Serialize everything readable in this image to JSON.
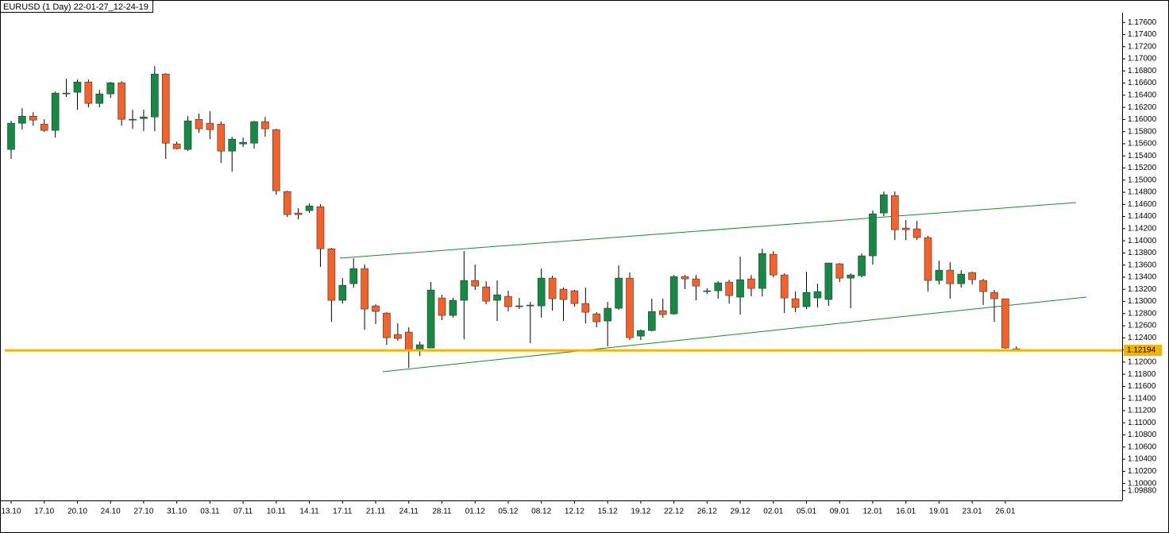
{
  "chart_data": {
    "type": "candlestick",
    "title": "EURUSD (1 Day) 22-01-27_12-24-19",
    "categories": [
      "13.10",
      null,
      null,
      "17.10",
      null,
      null,
      "20.10",
      null,
      null,
      "24.10",
      null,
      null,
      "27.10",
      null,
      null,
      "31.10",
      null,
      null,
      "03.11",
      null,
      null,
      "07.11",
      null,
      null,
      "10.11",
      null,
      null,
      "14.11",
      null,
      null,
      "17.11",
      null,
      null,
      "21.11",
      null,
      null,
      "24.11",
      null,
      null,
      "28.11",
      null,
      null,
      "01.12",
      null,
      null,
      "05.12",
      null,
      null,
      "08.12",
      null,
      null,
      "12.12",
      null,
      null,
      "15.12",
      null,
      null,
      "19.12",
      null,
      null,
      "22.12",
      null,
      null,
      "26.12",
      null,
      null,
      "29.12",
      null,
      null,
      "02.01",
      null,
      null,
      "05.01",
      null,
      null,
      "09.01",
      null,
      null,
      "12.01",
      null,
      null,
      "16.01",
      null,
      null,
      "19.01",
      null,
      null,
      "23.01",
      null,
      null,
      "26.01",
      null
    ],
    "open": [
      1.15506,
      1.15938,
      1.16055,
      1.15924,
      1.1582,
      1.16422,
      1.16448,
      1.16618,
      1.16265,
      1.16422,
      1.16605,
      1.16003,
      1.16016,
      1.16042,
      1.16749,
      1.15597,
      1.15506,
      1.16003,
      1.15938,
      1.15924,
      1.15479,
      1.15597,
      1.1561,
      1.15964,
      1.15833,
      1.14812,
      1.14458,
      1.14498,
      1.14563,
      1.13869,
      1.13019,
      1.13293,
      1.13542,
      1.12927,
      1.12809,
      1.12456,
      1.12495,
      1.12207,
      1.12233,
      1.13058,
      1.1277,
      1.13019,
      1.13346,
      1.13241,
      1.13019,
      1.13084,
      1.12927,
      1.1294,
      1.12927,
      1.13385,
      1.13202,
      1.13176,
      1.12966,
      1.12796,
      1.12678,
      1.12888,
      1.13385,
      1.12429,
      1.12521,
      1.12848,
      1.12796,
      1.13411,
      1.13372,
      1.13176,
      1.13176,
      1.1332,
      1.13071,
      1.13372,
      1.13215,
      1.13778,
      1.13437,
      1.13045,
      1.12914,
      1.13058,
      1.13032,
      1.13621,
      1.13385,
      1.13424,
      1.13752,
      1.14458,
      1.14746,
      1.1421,
      1.14197,
      1.14053,
      1.13346,
      1.13516,
      1.13293,
      1.13477,
      1.13346,
      1.13149,
      1.13045,
      1.1222
    ],
    "high": [
      1.15977,
      1.16186,
      1.16121,
      1.16003,
      1.16461,
      1.16671,
      1.16658,
      1.16658,
      1.16487,
      1.16618,
      1.16631,
      1.1616,
      1.1616,
      1.1688,
      1.16762,
      1.15636,
      1.16055,
      1.16095,
      1.16134,
      1.15964,
      1.15715,
      1.15702,
      1.15977,
      1.16042,
      1.15846,
      1.14825,
      1.14537,
      1.14616,
      1.14602,
      1.13882,
      1.13385,
      1.13712,
      1.13608,
      1.12953,
      1.12822,
      1.12639,
      1.12573,
      1.12338,
      1.1332,
      1.1311,
      1.13058,
      1.1383,
      1.13608,
      1.13333,
      1.13346,
      1.13176,
      1.13058,
      1.12992,
      1.13542,
      1.13424,
      1.13228,
      1.13189,
      1.13228,
      1.12822,
      1.12992,
      1.13594,
      1.13477,
      1.12534,
      1.13045,
      1.13045,
      1.13437,
      1.13437,
      1.13437,
      1.13215,
      1.13333,
      1.13359,
      1.13738,
      1.13437,
      1.13869,
      1.1383,
      1.13464,
      1.13163,
      1.1349,
      1.13293,
      1.13634,
      1.13634,
      1.13464,
      1.13791,
      1.14498,
      1.14812,
      1.14812,
      1.14341,
      1.14328,
      1.14079,
      1.13673,
      1.13647,
      1.13516,
      1.1349,
      1.13372,
      1.13189,
      1.13045,
      1.12259
    ],
    "low": [
      1.15349,
      1.15833,
      1.15898,
      1.15794,
      1.15702,
      1.1637,
      1.1616,
      1.16199,
      1.16199,
      1.16356,
      1.15898,
      1.15846,
      1.15807,
      1.15807,
      1.15349,
      1.15506,
      1.15479,
      1.15781,
      1.15676,
      1.15283,
      1.15139,
      1.15545,
      1.15519,
      1.15715,
      1.14759,
      1.14393,
      1.14354,
      1.14458,
      1.13568,
      1.12665,
      1.12966,
      1.13228,
      1.12534,
      1.12626,
      1.12285,
      1.12351,
      1.11906,
      1.12102,
      1.12233,
      1.12691,
      1.12731,
      1.12377,
      1.13189,
      1.12953,
      1.12678,
      1.12835,
      1.12875,
      1.12312,
      1.12731,
      1.12848,
      1.12678,
      1.12914,
      1.12639,
      1.12573,
      1.12259,
      1.12861,
      1.12364,
      1.12364,
      1.12508,
      1.12731,
      1.12783,
      1.13202,
      1.13019,
      1.13123,
      1.13045,
      1.12966,
      1.12783,
      1.13084,
      1.13084,
      1.13398,
      1.12809,
      1.12822,
      1.12875,
      1.12901,
      1.12927,
      1.1332,
      1.12888,
      1.13398,
      1.13608,
      1.14406,
      1.14013,
      1.14013,
      1.14013,
      1.13163,
      1.1328,
      1.13045,
      1.13228,
      1.1328,
      1.1294,
      1.12665,
      1.1222,
      1.12181
    ],
    "close": [
      1.15938,
      1.16055,
      1.1599,
      1.1582,
      1.16435,
      1.16435,
      1.16618,
      1.16265,
      1.16422,
      1.16605,
      1.16003,
      1.16003,
      1.16042,
      1.16749,
      1.1561,
      1.15519,
      1.15977,
      1.15846,
      1.15833,
      1.15479,
      1.15676,
      1.15623,
      1.15964,
      1.15846,
      1.14825,
      1.14432,
      1.14432,
      1.14576,
      1.13869,
      1.13019,
      1.13267,
      1.13542,
      1.12875,
      1.12835,
      1.12403,
      1.1239,
      1.12194,
      1.12286,
      1.13189,
      1.1277,
      1.13019,
      1.13346,
      1.13254,
      1.13005,
      1.1311,
      1.12914,
      1.12927,
      1.1294,
      1.13385,
      1.13045,
      1.13032,
      1.12966,
      1.12822,
      1.12665,
      1.12888,
      1.13385,
      1.12403,
      1.12521,
      1.12835,
      1.12783,
      1.13411,
      1.13372,
      1.13254,
      1.13176,
      1.13307,
      1.13097,
      1.13359,
      1.13215,
      1.13791,
      1.13437,
      1.13058,
      1.12901,
      1.13149,
      1.13163,
      1.13634,
      1.13385,
      1.13437,
      1.13752,
      1.14445,
      1.14759,
      1.14183,
      1.14183,
      1.14053,
      1.13346,
      1.13516,
      1.13293,
      1.13451,
      1.13359,
      1.13163,
      1.13045,
      1.12233,
      1.12194
    ],
    "up_color": "#148a45",
    "down_color": "#f4622a",
    "last_price": 1.12194,
    "last_price_color": "#f5b400",
    "ylim": [
      1.0972,
      1.1776
    ],
    "yticks": [
      {
        "value": 1.0988,
        "label": "1.09880"
      },
      {
        "value": 1.1,
        "label": "1.10000"
      },
      {
        "value": 1.102,
        "label": "1.10200"
      },
      {
        "value": 1.104,
        "label": "1.10400"
      },
      {
        "value": 1.106,
        "label": "1.10600"
      },
      {
        "value": 1.108,
        "label": "1.10800"
      },
      {
        "value": 1.11,
        "label": "1.11000"
      },
      {
        "value": 1.112,
        "label": "1.11200"
      },
      {
        "value": 1.114,
        "label": "1.11400"
      },
      {
        "value": 1.116,
        "label": "1.11600"
      },
      {
        "value": 1.118,
        "label": "1.11800"
      },
      {
        "value": 1.12,
        "label": "1.12000"
      },
      {
        "value": 1.122,
        "label": "1.12200"
      },
      {
        "value": 1.124,
        "label": "1.12400"
      },
      {
        "value": 1.126,
        "label": "1.12600"
      },
      {
        "value": 1.128,
        "label": "1.12800"
      },
      {
        "value": 1.13,
        "label": "1.13000"
      },
      {
        "value": 1.132,
        "label": "1.13200"
      },
      {
        "value": 1.134,
        "label": "1.13400"
      },
      {
        "value": 1.136,
        "label": "1.13600"
      },
      {
        "value": 1.138,
        "label": "1.13800"
      },
      {
        "value": 1.14,
        "label": "1.14000"
      },
      {
        "value": 1.142,
        "label": "1.14200"
      },
      {
        "value": 1.144,
        "label": "1.14400"
      },
      {
        "value": 1.146,
        "label": "1.14600"
      },
      {
        "value": 1.148,
        "label": "1.14800"
      },
      {
        "value": 1.15,
        "label": "1.15000"
      },
      {
        "value": 1.152,
        "label": "1.15200"
      },
      {
        "value": 1.154,
        "label": "1.15400"
      },
      {
        "value": 1.156,
        "label": "1.15600"
      },
      {
        "value": 1.158,
        "label": "1.15800"
      },
      {
        "value": 1.16,
        "label": "1.16000"
      },
      {
        "value": 1.162,
        "label": "1.16200"
      },
      {
        "value": 1.164,
        "label": "1.16400"
      },
      {
        "value": 1.166,
        "label": "1.16600"
      },
      {
        "value": 1.168,
        "label": "1.16800"
      },
      {
        "value": 1.17,
        "label": "1.17000"
      },
      {
        "value": 1.172,
        "label": "1.17200"
      },
      {
        "value": 1.174,
        "label": "1.17400"
      },
      {
        "value": 1.176,
        "label": "1.17600"
      }
    ]
  }
}
